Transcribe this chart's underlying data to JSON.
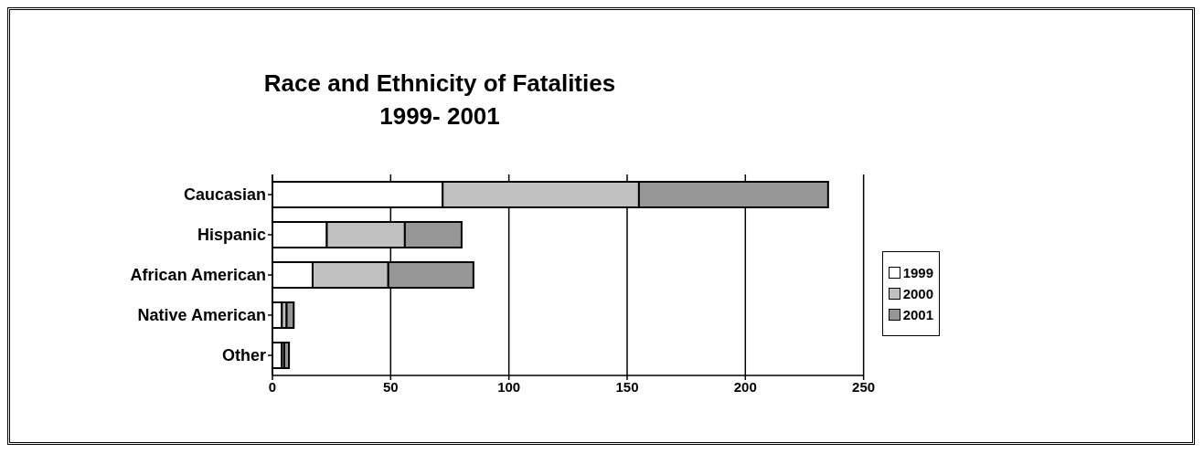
{
  "chart_data": {
    "type": "bar",
    "orientation": "horizontal",
    "stacked": true,
    "title": "Race and Ethnicity of Fatalities\n1999- 2001",
    "categories": [
      "Caucasian",
      "Hispanic",
      "African American",
      "Native American",
      "Other"
    ],
    "series": [
      {
        "name": "1999",
        "color": "#ffffff",
        "values": [
          72,
          23,
          17,
          4,
          4
        ]
      },
      {
        "name": "2000",
        "color": "#c0c0c0",
        "values": [
          83,
          33,
          32,
          2,
          1
        ]
      },
      {
        "name": "2001",
        "color": "#969696",
        "values": [
          80,
          24,
          36,
          3,
          2
        ]
      }
    ],
    "xlim": [
      0,
      250
    ],
    "xticks": [
      0,
      50,
      100,
      150,
      200,
      250
    ],
    "grid": "x",
    "legend": "right"
  }
}
